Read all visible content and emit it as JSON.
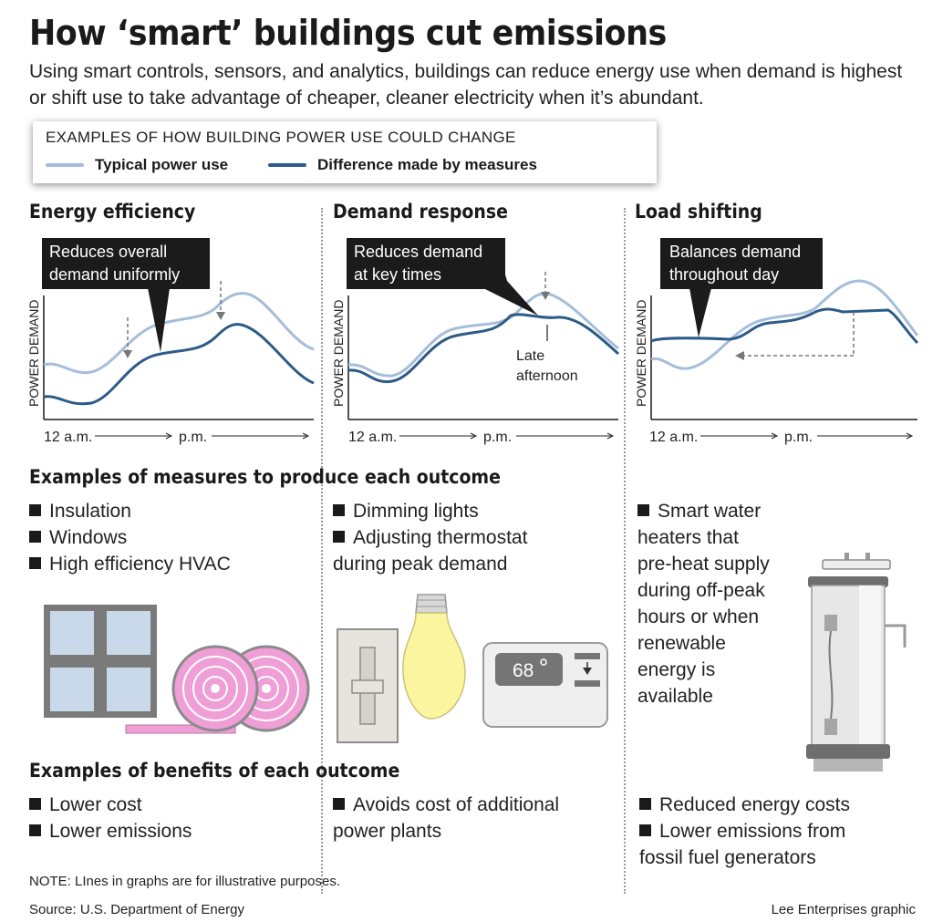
{
  "title": "How ‘smart’ buildings cut emissions",
  "subtitle": "Using smart controls, sensors, and analytics, buildings can reduce energy use when demand is highest or shift use to take advantage of cheaper, cleaner electricity when it’s abundant.",
  "legend": {
    "heading": "EXAMPLES OF HOW BUILDING POWER USE COULD CHANGE",
    "typical": "Typical power use",
    "difference": "Difference made by measures"
  },
  "colors": {
    "typical": "#a5bddb",
    "difference": "#2d5b87",
    "callout": "#1b1b1b",
    "insulation": "#ef9fd6"
  },
  "y_axis_label": "POWER DEMAND",
  "x_start_label": "12 a.m.",
  "x_mid_label": "p.m.",
  "panels": [
    {
      "heading": "Energy efficiency",
      "callout": [
        "Reduces overall",
        "demand uniformly"
      ]
    },
    {
      "heading": "Demand response",
      "callout": [
        "Reduces demand",
        "at key times"
      ],
      "annotation": [
        "Late",
        "afternoon"
      ]
    },
    {
      "heading": "Load shifting",
      "callout": [
        "Balances demand",
        "throughout day"
      ]
    }
  ],
  "measures_heading": "Examples of measures to produce each outcome",
  "measures": [
    [
      "Insulation",
      "Windows",
      "High efficiency HVAC"
    ],
    [
      "Dimming lights",
      "Adjusting thermostat",
      "during peak demand"
    ],
    [
      "Smart water",
      "heaters that",
      "pre-heat supply",
      "during off-peak",
      "hours or when",
      "renewable",
      "energy is",
      "available"
    ]
  ],
  "thermostat_reading": "68",
  "benefits_heading": "Examples of benefits of each outcome",
  "benefits": [
    [
      "Lower cost",
      "Lower emissions"
    ],
    [
      "Avoids cost of additional",
      "power plants"
    ],
    [
      "Reduced energy costs",
      "Lower emissions from",
      "fossil fuel generators"
    ]
  ],
  "note": "NOTE: LInes in graphs are for illustrative purposes.",
  "source": "Source: U.S. Department of Energy",
  "credit": "Lee Enterprises graphic"
}
